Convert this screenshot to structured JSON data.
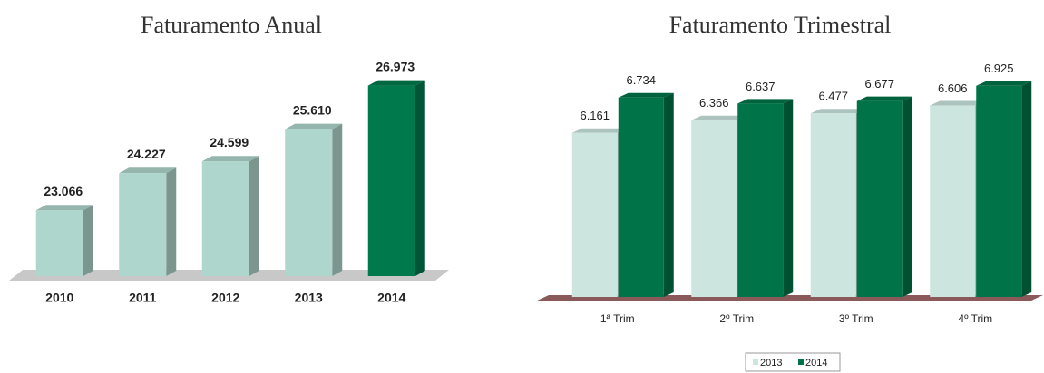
{
  "chart_data": [
    {
      "type": "bar3d",
      "title": "Faturamento Anual",
      "categories": [
        "2010",
        "2011",
        "2012",
        "2013",
        "2014"
      ],
      "values": [
        23.066,
        24.227,
        24.599,
        25.61,
        26.973
      ],
      "value_labels": [
        "23.066",
        "24.227",
        "24.599",
        "25.610",
        "26.973"
      ],
      "colors": [
        "#aed6cc",
        "#aed6cc",
        "#aed6cc",
        "#aed6cc",
        "#007a4d"
      ],
      "ylim": [
        21,
        27.5
      ]
    },
    {
      "type": "grouped3d",
      "title": "Faturamento Trimestral",
      "categories": [
        "1ª Trim",
        "2º Trim",
        "3º Trim",
        "4º Trim"
      ],
      "series": [
        {
          "name": "2013",
          "color": "#cce5de",
          "values": [
            6.161,
            6.366,
            6.477,
            6.606
          ],
          "value_labels": [
            "6.161",
            "6.366",
            "6.477",
            "6.606"
          ]
        },
        {
          "name": "2014",
          "color": "#007448",
          "values": [
            6.734,
            6.637,
            6.677,
            6.925
          ],
          "value_labels": [
            "6.734",
            "6.637",
            "6.677",
            "6.925"
          ]
        }
      ],
      "ylim": [
        3.5,
        7.2
      ],
      "legend": "bottom"
    }
  ]
}
